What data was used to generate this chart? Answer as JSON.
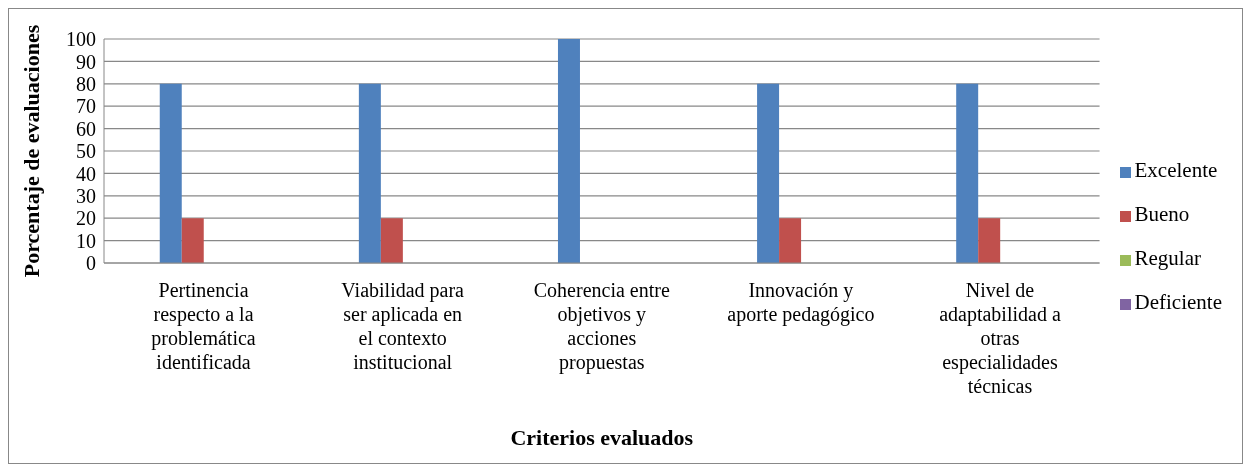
{
  "chart_data": {
    "type": "bar",
    "xlabel": "Criterios evaluados",
    "ylabel": "Porcentaje de evaluaciones",
    "categories": [
      "Pertinencia respecto a la problemática identificada",
      "Viabilidad para ser aplicada en el contexto institucional",
      "Coherencia entre objetivos y acciones propuestas",
      "Innovación y aporte pedagógico",
      "Nivel de adaptabilidad a otras especialidades técnicas"
    ],
    "series": [
      {
        "name": "Excelente",
        "color": "#4f81bd",
        "values": [
          80,
          80,
          100,
          80,
          80
        ]
      },
      {
        "name": "Bueno",
        "color": "#c0504d",
        "values": [
          20,
          20,
          0,
          20,
          20
        ]
      },
      {
        "name": "Regular",
        "color": "#9bbb59",
        "values": [
          0,
          0,
          0,
          0,
          0
        ]
      },
      {
        "name": "Deficiente",
        "color": "#8064a2",
        "values": [
          0,
          0,
          0,
          0,
          0
        ]
      }
    ],
    "ylim": [
      0,
      100
    ],
    "yticks": [
      0,
      10,
      20,
      30,
      40,
      50,
      60,
      70,
      80,
      90,
      100
    ],
    "grid": "y",
    "legend": "right"
  }
}
